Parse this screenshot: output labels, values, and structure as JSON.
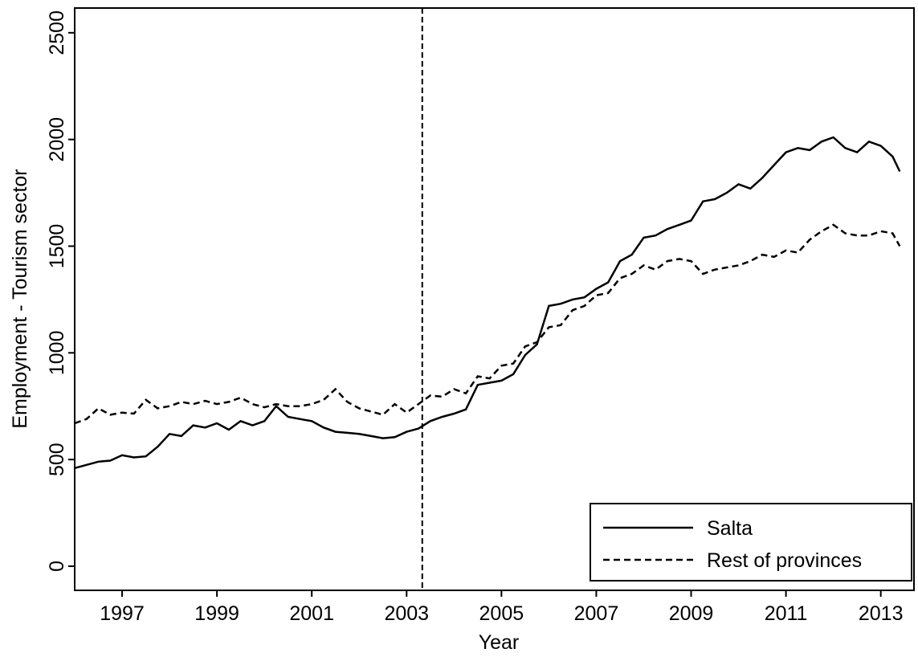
{
  "chart_data": {
    "type": "line",
    "xlabel": "Year",
    "ylabel": "Employment - Tourism sector",
    "x": [
      1996.0,
      1996.25,
      1996.5,
      1996.75,
      1997.0,
      1997.25,
      1997.5,
      1997.75,
      1998.0,
      1998.25,
      1998.5,
      1998.75,
      1999.0,
      1999.25,
      1999.5,
      1999.75,
      2000.0,
      2000.25,
      2000.5,
      2000.75,
      2001.0,
      2001.25,
      2001.5,
      2001.75,
      2002.0,
      2002.25,
      2002.5,
      2002.75,
      2003.0,
      2003.25,
      2003.5,
      2003.75,
      2004.0,
      2004.25,
      2004.5,
      2004.75,
      2005.0,
      2005.25,
      2005.5,
      2005.75,
      2006.0,
      2006.25,
      2006.5,
      2006.75,
      2007.0,
      2007.25,
      2007.5,
      2007.75,
      2008.0,
      2008.25,
      2008.5,
      2008.75,
      2009.0,
      2009.25,
      2009.5,
      2009.75,
      2010.0,
      2010.25,
      2010.5,
      2010.75,
      2011.0,
      2011.25,
      2011.5,
      2011.75,
      2012.0,
      2012.25,
      2012.5,
      2012.75,
      2013.0,
      2013.25,
      2013.4
    ],
    "series": [
      {
        "name": "Salta",
        "color": "#000000",
        "dash": "solid",
        "values": [
          460,
          475,
          490,
          495,
          520,
          510,
          515,
          560,
          620,
          610,
          660,
          650,
          670,
          640,
          680,
          660,
          680,
          750,
          700,
          690,
          680,
          650,
          630,
          625,
          620,
          610,
          600,
          605,
          630,
          645,
          680,
          700,
          715,
          735,
          850,
          860,
          870,
          900,
          990,
          1040,
          1220,
          1230,
          1250,
          1260,
          1300,
          1330,
          1430,
          1460,
          1540,
          1550,
          1580,
          1600,
          1620,
          1710,
          1720,
          1750,
          1790,
          1770,
          1820,
          1880,
          1940,
          1960,
          1950,
          1990,
          2010,
          1960,
          1940,
          1990,
          1970,
          1920,
          1850
        ]
      },
      {
        "name": "Rest of provinces",
        "color": "#000000",
        "dash": "dashed",
        "values": [
          670,
          690,
          740,
          710,
          720,
          715,
          780,
          740,
          750,
          770,
          760,
          775,
          760,
          770,
          790,
          760,
          745,
          760,
          750,
          750,
          760,
          780,
          830,
          770,
          740,
          725,
          710,
          760,
          720,
          760,
          800,
          795,
          830,
          810,
          890,
          880,
          940,
          950,
          1030,
          1050,
          1120,
          1130,
          1200,
          1220,
          1270,
          1280,
          1350,
          1370,
          1410,
          1390,
          1430,
          1440,
          1430,
          1370,
          1390,
          1400,
          1410,
          1430,
          1460,
          1450,
          1480,
          1470,
          1530,
          1570,
          1600,
          1560,
          1550,
          1550,
          1570,
          1560,
          1500
        ]
      }
    ],
    "vline": 2003.33,
    "xlim": [
      1996.0,
      2013.7
    ],
    "xticks": [
      1997,
      1999,
      2001,
      2003,
      2005,
      2007,
      2009,
      2011,
      2013
    ],
    "ylim": [
      -113,
      2616
    ],
    "yticks": [
      0,
      500,
      1000,
      1500,
      2000,
      2500
    ],
    "grid": false,
    "legend": "lower right"
  }
}
